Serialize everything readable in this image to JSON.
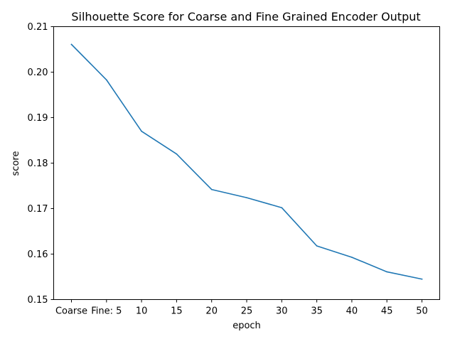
{
  "chart_data": {
    "type": "line",
    "title": "Silhouette Score for Coarse and Fine Grained Encoder Output",
    "xlabel": "epoch",
    "ylabel": "score",
    "categories": [
      "Coarse",
      "Fine: 5",
      "10",
      "15",
      "20",
      "25",
      "30",
      "35",
      "40",
      "45",
      "50"
    ],
    "series": [
      {
        "values": [
          0.2061,
          0.1983,
          0.187,
          0.182,
          0.1742,
          0.1724,
          0.1702,
          0.1618,
          0.1593,
          0.1561,
          0.1545
        ],
        "color": "#1f77b4"
      }
    ],
    "ylim": [
      0.15,
      0.21
    ],
    "yticks": [
      {
        "value": 0.15,
        "label": "0.15"
      },
      {
        "value": 0.16,
        "label": "0.16"
      },
      {
        "value": 0.17,
        "label": "0.17"
      },
      {
        "value": 0.18,
        "label": "0.18"
      },
      {
        "value": 0.19,
        "label": "0.19"
      },
      {
        "value": 0.2,
        "label": "0.20"
      },
      {
        "value": 0.21,
        "label": "0.21"
      }
    ],
    "grid": false,
    "legend": "none"
  }
}
